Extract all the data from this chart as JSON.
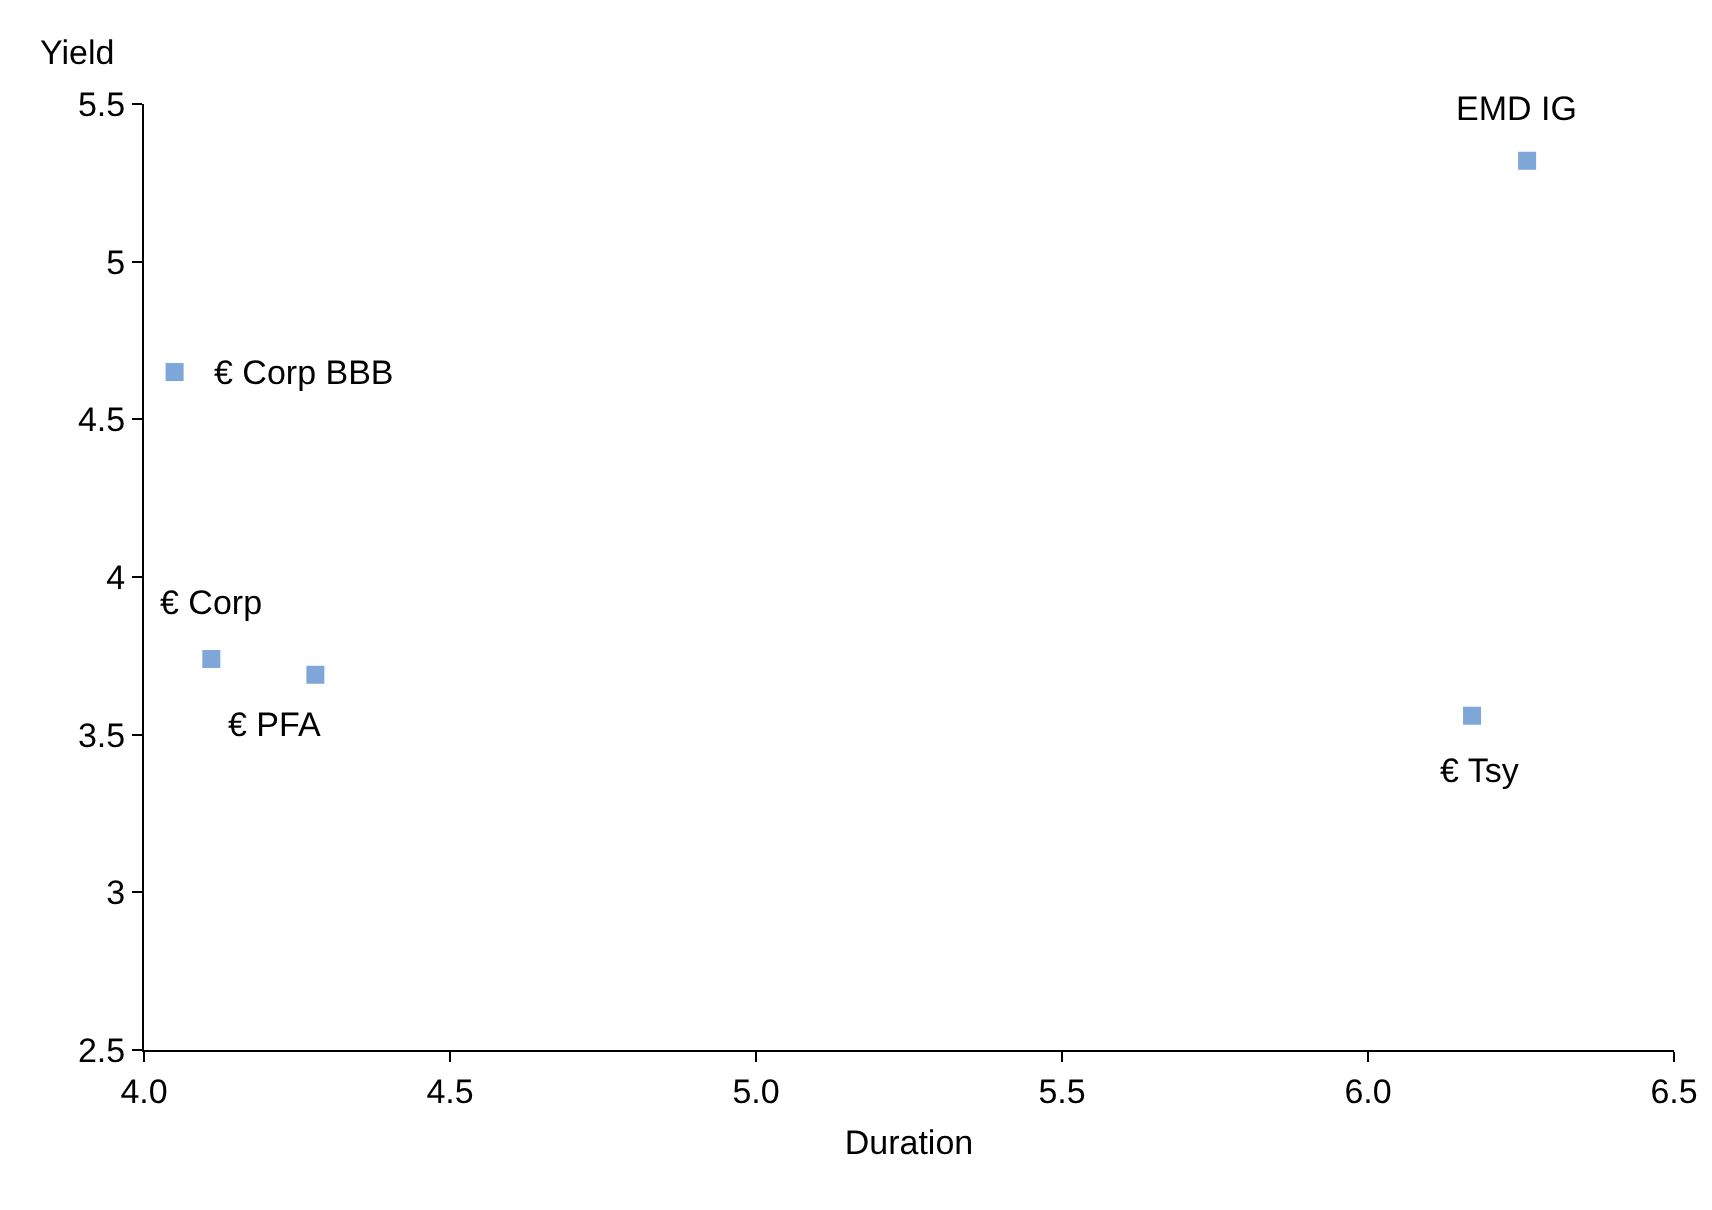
{
  "chart_data": {
    "type": "scatter",
    "xlabel": "Duration",
    "ylabel": "Yield",
    "x": [
      4.05,
      4.11,
      4.28,
      6.17,
      6.26
    ],
    "values": [
      4.65,
      3.74,
      3.69,
      3.56,
      5.32
    ],
    "color": "#7ea6d8",
    "marker": "square",
    "grid": false,
    "xlim": [
      4,
      6.5
    ],
    "xticks": [
      {
        "value": 4,
        "label": "4.0"
      },
      {
        "value": 4.5,
        "label": "4.5"
      },
      {
        "value": 5,
        "label": "5.0"
      },
      {
        "value": 5.5,
        "label": "5.5"
      },
      {
        "value": 6,
        "label": "6.0"
      },
      {
        "value": 6.5,
        "label": "6.5"
      }
    ],
    "ylim": [
      2.5,
      5.5
    ],
    "yticks": [
      2.5,
      3,
      3.5,
      4,
      4.5,
      5,
      5.5
    ],
    "annotations": [
      {
        "text": "€ Corp BBB",
        "x": 4.05,
        "y": 4.65
      },
      {
        "text": "€ Corp",
        "x": 4.11,
        "y": 3.74
      },
      {
        "text": "€ PFA",
        "x": 4.28,
        "y": 3.69
      },
      {
        "text": "€ Tsy",
        "x": 6.17,
        "y": 3.56
      },
      {
        "text": "EMD IG",
        "x": 6.26,
        "y": 5.32
      }
    ]
  }
}
